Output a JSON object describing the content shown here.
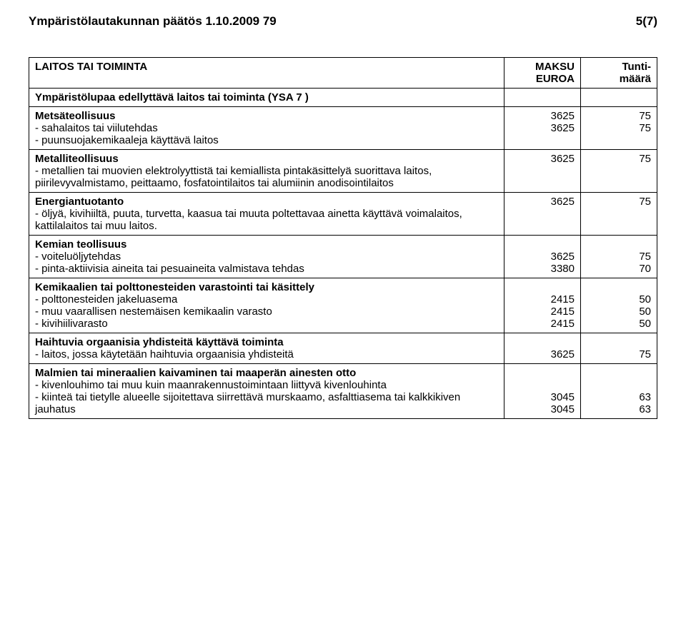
{
  "header": {
    "left": "Ympäristölautakunnan päätös 1.10.2009 79",
    "right": "5(7)"
  },
  "table": {
    "head": {
      "col1": "LAITOS TAI TOIMINTA",
      "col2a": "MAKSU",
      "col2b": "EUROA",
      "col3a": "Tunti-",
      "col3b": "määrä"
    },
    "rows": {
      "ysa_title": "Ympäristölupaa edellyttävä laitos tai toiminta (YSA 7 )",
      "metsa_title": "Metsäteollisuus",
      "metsa_l1": "- sahalaitos tai viilutehdas",
      "metsa_l2": "- puunsuojakemikaaleja käyttävä laitos",
      "metsa_v1": "3625",
      "metsa_t1": "75",
      "metsa_v2": "3625",
      "metsa_t2": "75",
      "metalli_title": "Metalliteollisuus",
      "metalli_desc": "- metallien tai muovien elektrolyyttistä tai kemiallista pintakäsittelyä suorittava laitos, piirilevyvalmistamo, peittaamo, fosfatointilaitos tai alumiinin anodisointilaitos",
      "metalli_v": "3625",
      "metalli_t": "75",
      "energia_title": "Energiantuotanto",
      "energia_desc": "- öljyä, kivihiiltä, puuta, turvetta, kaasua tai muuta poltettavaa ainetta käyttävä voimalaitos, kattilalaitos tai muu laitos.",
      "energia_v": "3625",
      "energia_t": "75",
      "kemian_title": "Kemian teollisuus",
      "kemian_l1": "- voiteluöljytehdas",
      "kemian_l2": "- pinta-aktiivisia aineita tai pesuaineita valmistava tehdas",
      "kemian_v1": "3625",
      "kemian_t1": "75",
      "kemian_v2": "3380",
      "kemian_t2": "70",
      "varasto_title": "Kemikaalien tai polttonesteiden varastointi tai käsittely",
      "varasto_l1": "- polttonesteiden jakeluasema",
      "varasto_l2": "- muu vaarallisen nestemäisen kemikaalin varasto",
      "varasto_l3": "- kivihiilivarasto",
      "varasto_v1": "2415",
      "varasto_t1": "50",
      "varasto_v2": "2415",
      "varasto_t2": "50",
      "varasto_v3": "2415",
      "varasto_t3": "50",
      "haiht_title": "Haihtuvia orgaanisia yhdisteitä käyttävä toiminta",
      "haiht_l1": "- laitos, jossa käytetään haihtuvia orgaanisia yhdisteitä",
      "haiht_v1": "3625",
      "haiht_t1": "75",
      "malmi_title": "Malmien tai mineraalien kaivaminen tai maaperän ainesten otto",
      "malmi_l1": "- kivenlouhimo tai muu kuin maanrakennustoimintaan liittyvä kivenlouhinta",
      "malmi_l2": "- kiinteä tai tietylle alueelle sijoitettava siirrettävä murskaamo, asfalttiasema tai kalkkikiven jauhatus",
      "malmi_v1": "3045",
      "malmi_t1": "63",
      "malmi_v2": "3045",
      "malmi_t2": "63"
    }
  }
}
